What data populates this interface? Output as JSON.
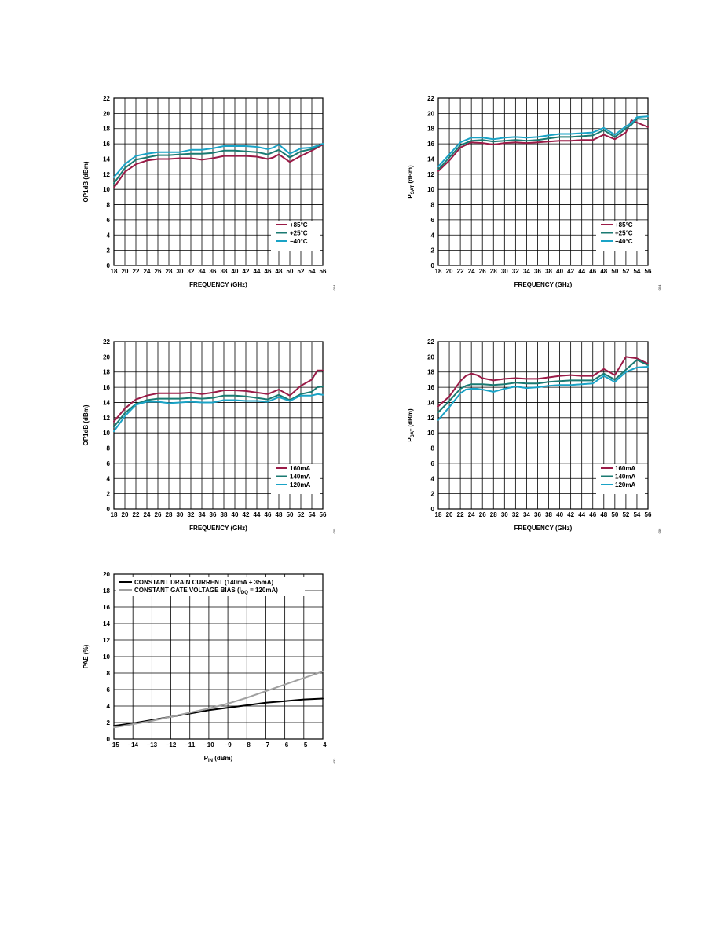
{
  "page": {
    "rule_color": "#9aa0a6"
  },
  "colors": {
    "hot": "#9a1b47",
    "room": "#1a7a72",
    "cold": "#1aa3c6",
    "black": "#000000",
    "gray": "#a0a0a0"
  },
  "chart_data": [
    {
      "type": "line",
      "ylabel": "OP1dB (dBm)",
      "xlabel": "FREQUENCY (GHz)",
      "xlim": [
        18,
        56
      ],
      "ylim": [
        0,
        22
      ],
      "xticks": [
        "18",
        "20",
        "22",
        "24",
        "26",
        "28",
        "30",
        "32",
        "34",
        "36",
        "38",
        "40",
        "42",
        "44",
        "46",
        "48",
        "50",
        "52",
        "54",
        "56"
      ],
      "yticks": [
        "0",
        "2",
        "4",
        "6",
        "8",
        "10",
        "12",
        "14",
        "16",
        "18",
        "20",
        "22"
      ],
      "grid": true,
      "legend": "bottom-right",
      "figure_id": "004",
      "series": [
        {
          "name": "+85°C",
          "color_key": "hot",
          "x": [
            18,
            20,
            22,
            24,
            26,
            28,
            30,
            32,
            34,
            36,
            38,
            40,
            42,
            44,
            46,
            47,
            48,
            50,
            52,
            54,
            56
          ],
          "y": [
            10.2,
            12.3,
            13.3,
            13.8,
            14.0,
            14.0,
            14.1,
            14.1,
            13.9,
            14.1,
            14.4,
            14.4,
            14.4,
            14.3,
            14.0,
            14.2,
            14.6,
            13.6,
            14.4,
            15.1,
            15.9
          ]
        },
        {
          "name": "+25°C",
          "color_key": "room",
          "x": [
            18,
            20,
            22,
            24,
            26,
            28,
            30,
            32,
            34,
            36,
            38,
            40,
            42,
            44,
            46,
            47,
            48,
            50,
            52,
            54,
            56
          ],
          "y": [
            10.8,
            12.8,
            13.9,
            14.2,
            14.5,
            14.5,
            14.6,
            14.7,
            14.7,
            14.8,
            15.1,
            15.1,
            15.0,
            14.9,
            14.6,
            14.9,
            15.2,
            14.2,
            15.0,
            15.3,
            16.0
          ]
        },
        {
          "name": "−40°C",
          "color_key": "cold",
          "x": [
            18,
            20,
            22,
            24,
            26,
            28,
            30,
            32,
            34,
            36,
            38,
            40,
            42,
            44,
            46,
            47,
            48,
            50,
            52,
            54,
            56
          ],
          "y": [
            11.6,
            13.3,
            14.4,
            14.7,
            14.9,
            14.9,
            14.9,
            15.2,
            15.2,
            15.4,
            15.7,
            15.7,
            15.7,
            15.6,
            15.3,
            15.5,
            15.9,
            14.7,
            15.4,
            15.5,
            16.0
          ]
        }
      ]
    },
    {
      "type": "line",
      "ylabel": "PSAT (dBm)",
      "ylabel_main": "P",
      "ylabel_sub": "SAT",
      "ylabel_tail": " (dBm)",
      "xlabel": "FREQUENCY (GHz)",
      "xlim": [
        18,
        56
      ],
      "ylim": [
        0,
        22
      ],
      "xticks": [
        "18",
        "20",
        "22",
        "24",
        "26",
        "28",
        "30",
        "32",
        "34",
        "36",
        "38",
        "40",
        "42",
        "44",
        "46",
        "48",
        "50",
        "52",
        "54",
        "56"
      ],
      "yticks": [
        "0",
        "2",
        "4",
        "6",
        "8",
        "10",
        "12",
        "14",
        "16",
        "18",
        "20",
        "22"
      ],
      "grid": true,
      "legend": "bottom-right",
      "figure_id": "004",
      "series": [
        {
          "name": "+85°C",
          "color_key": "hot",
          "x": [
            18,
            20,
            22,
            24,
            26,
            28,
            30,
            32,
            34,
            36,
            38,
            40,
            42,
            44,
            46,
            48,
            50,
            52,
            53,
            54,
            56
          ],
          "y": [
            12.4,
            13.8,
            15.5,
            16.2,
            16.1,
            15.9,
            16.1,
            16.2,
            16.1,
            16.2,
            16.3,
            16.4,
            16.4,
            16.5,
            16.5,
            17.2,
            16.6,
            17.5,
            19.1,
            18.8,
            18.2
          ]
        },
        {
          "name": "+25°C",
          "color_key": "room",
          "x": [
            18,
            20,
            22,
            24,
            26,
            28,
            30,
            32,
            34,
            36,
            38,
            40,
            42,
            44,
            46,
            48,
            50,
            52,
            53,
            54,
            56
          ],
          "y": [
            12.6,
            14.2,
            15.8,
            16.4,
            16.5,
            16.3,
            16.4,
            16.5,
            16.4,
            16.5,
            16.7,
            16.9,
            16.9,
            17.0,
            17.1,
            17.8,
            16.9,
            18.0,
            18.5,
            19.3,
            19.2
          ]
        },
        {
          "name": "−40°C",
          "color_key": "cold",
          "x": [
            18,
            20,
            22,
            24,
            26,
            28,
            30,
            32,
            34,
            36,
            38,
            40,
            42,
            44,
            46,
            48,
            50,
            52,
            53,
            54,
            56
          ],
          "y": [
            13.0,
            14.6,
            16.2,
            16.8,
            16.8,
            16.6,
            16.8,
            16.9,
            16.8,
            16.9,
            17.1,
            17.3,
            17.3,
            17.4,
            17.5,
            18.1,
            17.2,
            18.3,
            18.7,
            19.5,
            19.6
          ]
        }
      ]
    },
    {
      "type": "line",
      "ylabel": "OP1dB (dBm)",
      "xlabel": "FREQUENCY (GHz)",
      "xlim": [
        18,
        56
      ],
      "ylim": [
        0,
        22
      ],
      "xticks": [
        "18",
        "20",
        "22",
        "24",
        "26",
        "28",
        "30",
        "32",
        "34",
        "36",
        "38",
        "40",
        "42",
        "44",
        "46",
        "48",
        "50",
        "52",
        "54",
        "56"
      ],
      "yticks": [
        "0",
        "2",
        "4",
        "6",
        "8",
        "10",
        "12",
        "14",
        "16",
        "18",
        "20",
        "22"
      ],
      "grid": true,
      "legend": "bottom-right",
      "figure_id": "005",
      "series": [
        {
          "name": "160mA",
          "color_key": "hot",
          "x": [
            18,
            20,
            22,
            24,
            26,
            28,
            30,
            32,
            34,
            36,
            38,
            40,
            42,
            44,
            46,
            48,
            50,
            52,
            54,
            55,
            56
          ],
          "y": [
            11.5,
            13.2,
            14.4,
            14.9,
            15.2,
            15.2,
            15.2,
            15.3,
            15.1,
            15.3,
            15.6,
            15.6,
            15.5,
            15.3,
            15.1,
            15.7,
            14.9,
            16.2,
            17.0,
            18.2,
            18.2
          ]
        },
        {
          "name": "140mA",
          "color_key": "room",
          "x": [
            18,
            20,
            22,
            24,
            26,
            28,
            30,
            32,
            34,
            36,
            38,
            40,
            42,
            44,
            46,
            48,
            50,
            52,
            54,
            55,
            56
          ],
          "y": [
            10.8,
            12.6,
            13.8,
            14.3,
            14.5,
            14.5,
            14.5,
            14.6,
            14.5,
            14.6,
            14.9,
            14.9,
            14.8,
            14.6,
            14.4,
            15.0,
            14.3,
            15.1,
            15.4,
            16.0,
            16.1
          ]
        },
        {
          "name": "120mA",
          "color_key": "cold",
          "x": [
            18,
            20,
            22,
            24,
            26,
            28,
            30,
            32,
            34,
            36,
            38,
            40,
            42,
            44,
            46,
            48,
            50,
            52,
            54,
            55,
            56
          ],
          "y": [
            10.2,
            12.2,
            13.7,
            14.1,
            14.1,
            13.9,
            14.0,
            14.1,
            14.0,
            14.0,
            14.3,
            14.3,
            14.2,
            14.2,
            14.1,
            14.7,
            14.2,
            14.9,
            14.9,
            15.1,
            15.0
          ]
        }
      ]
    },
    {
      "type": "line",
      "ylabel": "PSAT (dBm)",
      "ylabel_main": "P",
      "ylabel_sub": "SAT",
      "ylabel_tail": " (dBm)",
      "xlabel": "FREQUENCY (GHz)",
      "xlim": [
        18,
        56
      ],
      "ylim": [
        0,
        22
      ],
      "xticks": [
        "18",
        "20",
        "22",
        "24",
        "26",
        "28",
        "30",
        "32",
        "34",
        "36",
        "38",
        "40",
        "42",
        "44",
        "46",
        "48",
        "50",
        "52",
        "54",
        "56"
      ],
      "yticks": [
        "0",
        "2",
        "4",
        "6",
        "8",
        "10",
        "12",
        "14",
        "16",
        "18",
        "20",
        "22"
      ],
      "grid": true,
      "legend": "bottom-right",
      "figure_id": "006",
      "series": [
        {
          "name": "160mA",
          "color_key": "hot",
          "x": [
            18,
            20,
            22,
            23,
            24,
            25,
            26,
            28,
            30,
            32,
            34,
            36,
            38,
            40,
            42,
            44,
            46,
            48,
            50,
            52,
            54,
            56
          ],
          "y": [
            13.5,
            14.8,
            16.8,
            17.5,
            17.8,
            17.6,
            17.2,
            16.9,
            17.1,
            17.2,
            17.1,
            17.1,
            17.3,
            17.5,
            17.6,
            17.5,
            17.5,
            18.4,
            17.6,
            20.0,
            19.8,
            19.1
          ]
        },
        {
          "name": "140mA",
          "color_key": "room",
          "x": [
            18,
            20,
            22,
            23,
            24,
            25,
            26,
            28,
            30,
            32,
            34,
            36,
            38,
            40,
            42,
            44,
            46,
            48,
            50,
            52,
            54,
            56
          ],
          "y": [
            12.7,
            14.2,
            15.8,
            16.2,
            16.4,
            16.4,
            16.4,
            16.3,
            16.4,
            16.6,
            16.5,
            16.5,
            16.7,
            16.8,
            16.9,
            16.9,
            16.9,
            17.8,
            17.0,
            18.3,
            19.6,
            18.9
          ]
        },
        {
          "name": "120mA",
          "color_key": "cold",
          "x": [
            18,
            20,
            22,
            23,
            24,
            25,
            26,
            28,
            30,
            32,
            34,
            36,
            38,
            40,
            42,
            44,
            46,
            48,
            50,
            52,
            54,
            56
          ],
          "y": [
            11.7,
            13.4,
            15.2,
            15.7,
            15.8,
            15.8,
            15.7,
            15.4,
            15.8,
            16.1,
            15.9,
            16.0,
            16.2,
            16.3,
            16.3,
            16.4,
            16.5,
            17.5,
            16.7,
            18.0,
            18.6,
            18.7
          ]
        }
      ]
    },
    {
      "type": "line",
      "ylabel": "PAE (%)",
      "xlabel": "PIN (dBm)",
      "xlabel_main": "P",
      "xlabel_sub": "IN",
      "xlabel_tail": " (dBm)",
      "xlim": [
        -15,
        -4
      ],
      "ylim": [
        0,
        20
      ],
      "xticks": [
        "−15",
        "−14",
        "−13",
        "−12",
        "−11",
        "−10",
        "−9",
        "−8",
        "−7",
        "−6",
        "−5",
        "−4"
      ],
      "yticks": [
        "0",
        "2",
        "4",
        "6",
        "8",
        "10",
        "12",
        "14",
        "16",
        "18",
        "20"
      ],
      "grid": true,
      "legend": "top-left",
      "figure_id": "033",
      "series": [
        {
          "name": "CONSTANT DRAIN CURRENT (140mA + 35mA)",
          "color_key": "black",
          "x": [
            -15,
            -14,
            -13,
            -12,
            -11,
            -10,
            -9,
            -8,
            -7,
            -6,
            -5,
            -4
          ],
          "y": [
            1.6,
            1.9,
            2.3,
            2.7,
            3.1,
            3.5,
            3.8,
            4.1,
            4.4,
            4.6,
            4.8,
            4.9
          ]
        },
        {
          "name": "CONSTANT GATE VOLTAGE BIAS (IDQ = 120mA)",
          "name_main": "CONSTANT GATE VOLTAGE BIAS (I",
          "name_sub": "DQ",
          "name_tail": " = 120mA)",
          "color_key": "gray",
          "x": [
            -15,
            -14,
            -13,
            -12,
            -11,
            -10,
            -9,
            -8,
            -7,
            -6,
            -5,
            -4
          ],
          "y": [
            1.4,
            1.8,
            2.2,
            2.7,
            3.2,
            3.7,
            4.3,
            5.0,
            5.8,
            6.6,
            7.4,
            8.2
          ]
        }
      ]
    }
  ]
}
